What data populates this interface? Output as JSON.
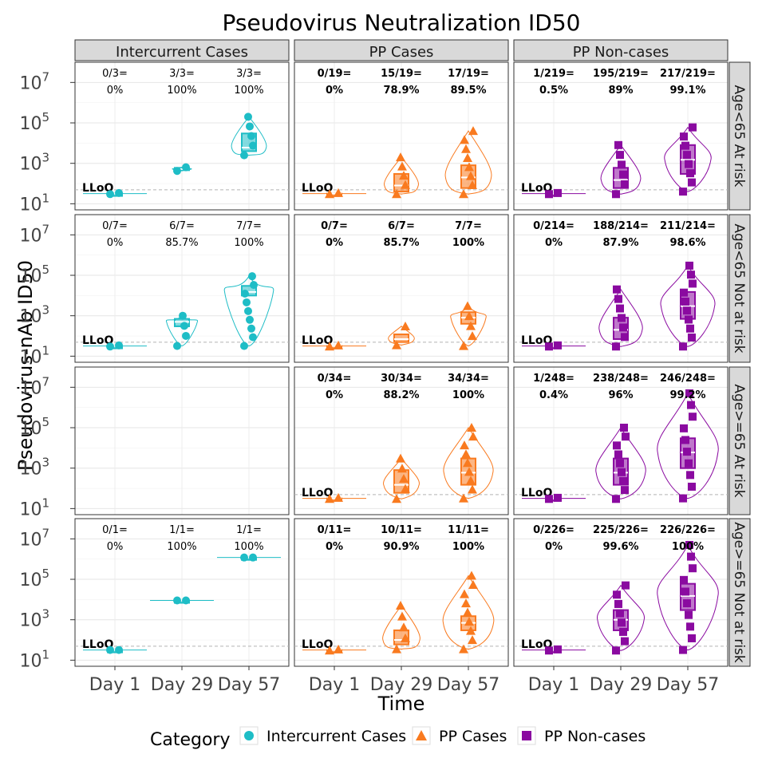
{
  "chart_data": {
    "type": "scatter",
    "title": "Pseudovirus Neutralization ID50",
    "xlabel": "Time",
    "ylabel": "Pseudovirus-nAb ID50",
    "y_scale": "log10",
    "ylim": [
      5,
      100000000
    ],
    "y_ticks": [
      {
        "value": 10,
        "base": "10",
        "exp": "1"
      },
      {
        "value": 1000,
        "base": "10",
        "exp": "3"
      },
      {
        "value": 100000,
        "base": "10",
        "exp": "5"
      },
      {
        "value": 10000000,
        "base": "10",
        "exp": "7"
      }
    ],
    "x_categories": [
      "Day 1",
      "Day 29",
      "Day 57"
    ],
    "lloq_label": "LLoQ",
    "lloq_value": 49,
    "grid": true,
    "legend": {
      "title": "Category",
      "position": "bottom",
      "items": [
        {
          "label": "Intercurrent Cases",
          "color": "#1ebdc6",
          "shape": "circle"
        },
        {
          "label": "PP Cases",
          "color": "#f97a1f",
          "shape": "triangle"
        },
        {
          "label": "PP Non-cases",
          "color": "#8a0aa0",
          "shape": "square"
        }
      ]
    },
    "columns": [
      "Intercurrent Cases",
      "PP Cases",
      "PP Non-cases"
    ],
    "rows": [
      "Age<65 At risk",
      "Age<65 Not at risk",
      "Age>=65 At risk",
      "Age>=65 Not at risk"
    ],
    "panels": [
      {
        "row": 0,
        "col": 0,
        "groups": [
          {
            "frac": "0/3=",
            "pct": "0%",
            "median": 32,
            "q1": 32,
            "q3": 32,
            "min": 30,
            "max": 34
          },
          {
            "frac": "3/3=",
            "pct": "100%",
            "median": 520,
            "q1": 470,
            "q3": 600,
            "min": 420,
            "max": 640
          },
          {
            "frac": "3/3=",
            "pct": "100%",
            "median": 6000,
            "q1": 4000,
            "q3": 30000,
            "min": 2500,
            "max": 200000
          }
        ]
      },
      {
        "row": 0,
        "col": 1,
        "groups": [
          {
            "frac": "0/19=",
            "pct": "0%",
            "median": 32,
            "q1": 32,
            "q3": 32,
            "min": 30,
            "max": 34
          },
          {
            "frac": "15/19=",
            "pct": "78.9%",
            "median": 80,
            "q1": 40,
            "q3": 300,
            "min": 30,
            "max": 2000
          },
          {
            "frac": "17/19=",
            "pct": "89.5%",
            "median": 200,
            "q1": 60,
            "q3": 800,
            "min": 30,
            "max": 40000
          }
        ]
      },
      {
        "row": 0,
        "col": 2,
        "groups": [
          {
            "frac": "1/219=",
            "pct": "0.5%",
            "median": 32,
            "q1": 32,
            "q3": 32,
            "min": 30,
            "max": 34
          },
          {
            "frac": "195/219=",
            "pct": "89%",
            "median": 150,
            "q1": 60,
            "q3": 600,
            "min": 30,
            "max": 8000
          },
          {
            "frac": "217/219=",
            "pct": "99.1%",
            "median": 1500,
            "q1": 300,
            "q3": 8000,
            "min": 40,
            "max": 60000
          }
        ]
      },
      {
        "row": 1,
        "col": 0,
        "groups": [
          {
            "frac": "0/7=",
            "pct": "0%",
            "median": 32,
            "q1": 32,
            "q3": 32,
            "min": 30,
            "max": 34
          },
          {
            "frac": "6/7=",
            "pct": "85.7%",
            "median": 500,
            "q1": 300,
            "q3": 700,
            "min": 32,
            "max": 1000
          },
          {
            "frac": "7/7=",
            "pct": "100%",
            "median": 15000,
            "q1": 10000,
            "q3": 30000,
            "min": 32,
            "max": 90000
          }
        ]
      },
      {
        "row": 1,
        "col": 1,
        "groups": [
          {
            "frac": "0/7=",
            "pct": "0%",
            "median": 32,
            "q1": 32,
            "q3": 32,
            "min": 30,
            "max": 34
          },
          {
            "frac": "6/7=",
            "pct": "85.7%",
            "median": 70,
            "q1": 50,
            "q3": 120,
            "min": 35,
            "max": 300
          },
          {
            "frac": "7/7=",
            "pct": "100%",
            "median": 800,
            "q1": 400,
            "q3": 1500,
            "min": 32,
            "max": 3000
          }
        ]
      },
      {
        "row": 1,
        "col": 2,
        "groups": [
          {
            "frac": "0/214=",
            "pct": "0%",
            "median": 32,
            "q1": 32,
            "q3": 32,
            "min": 30,
            "max": 34
          },
          {
            "frac": "188/214=",
            "pct": "87.9%",
            "median": 200,
            "q1": 70,
            "q3": 800,
            "min": 30,
            "max": 20000
          },
          {
            "frac": "211/214=",
            "pct": "98.6%",
            "median": 3000,
            "q1": 700,
            "q3": 15000,
            "min": 30,
            "max": 300000
          }
        ]
      },
      {
        "row": 2,
        "col": 1,
        "groups": [
          {
            "frac": "0/34=",
            "pct": "0%",
            "median": 32,
            "q1": 32,
            "q3": 32,
            "min": 30,
            "max": 34
          },
          {
            "frac": "30/34=",
            "pct": "88.2%",
            "median": 150,
            "q1": 60,
            "q3": 800,
            "min": 30,
            "max": 3000
          },
          {
            "frac": "34/34=",
            "pct": "100%",
            "median": 600,
            "q1": 150,
            "q3": 3000,
            "min": 32,
            "max": 100000
          }
        ]
      },
      {
        "row": 2,
        "col": 2,
        "groups": [
          {
            "frac": "1/248=",
            "pct": "0.4%",
            "median": 32,
            "q1": 32,
            "q3": 32,
            "min": 30,
            "max": 34
          },
          {
            "frac": "238/248=",
            "pct": "96%",
            "median": 600,
            "q1": 150,
            "q3": 3000,
            "min": 30,
            "max": 100000
          },
          {
            "frac": "246/248=",
            "pct": "99.2%",
            "median": 6000,
            "q1": 1000,
            "q3": 30000,
            "min": 32,
            "max": 5000000
          }
        ]
      },
      {
        "row": 3,
        "col": 0,
        "groups": [
          {
            "frac": "0/1=",
            "pct": "0%",
            "median": 32,
            "q1": 32,
            "q3": 32,
            "min": 32,
            "max": 32
          },
          {
            "frac": "1/1=",
            "pct": "100%",
            "median": 9000,
            "q1": 9000,
            "q3": 9000,
            "min": 9000,
            "max": 9000
          },
          {
            "frac": "1/1=",
            "pct": "100%",
            "median": 1200000,
            "q1": 1200000,
            "q3": 1200000,
            "min": 1200000,
            "max": 1200000
          }
        ]
      },
      {
        "row": 3,
        "col": 1,
        "groups": [
          {
            "frac": "0/11=",
            "pct": "0%",
            "median": 32,
            "q1": 32,
            "q3": 32,
            "min": 30,
            "max": 34
          },
          {
            "frac": "10/11=",
            "pct": "90.9%",
            "median": 100,
            "q1": 60,
            "q3": 300,
            "min": 35,
            "max": 5000
          },
          {
            "frac": "11/11=",
            "pct": "100%",
            "median": 700,
            "q1": 300,
            "q3": 1500,
            "min": 35,
            "max": 150000
          }
        ]
      },
      {
        "row": 3,
        "col": 2,
        "groups": [
          {
            "frac": "0/226=",
            "pct": "0%",
            "median": 32,
            "q1": 32,
            "q3": 32,
            "min": 30,
            "max": 34
          },
          {
            "frac": "225/226=",
            "pct": "99.6%",
            "median": 1000,
            "q1": 300,
            "q3": 3000,
            "min": 30,
            "max": 50000
          },
          {
            "frac": "226/226=",
            "pct": "100%",
            "median": 15000,
            "q1": 3000,
            "q3": 60000,
            "min": 32,
            "max": 5000000
          }
        ]
      }
    ]
  }
}
